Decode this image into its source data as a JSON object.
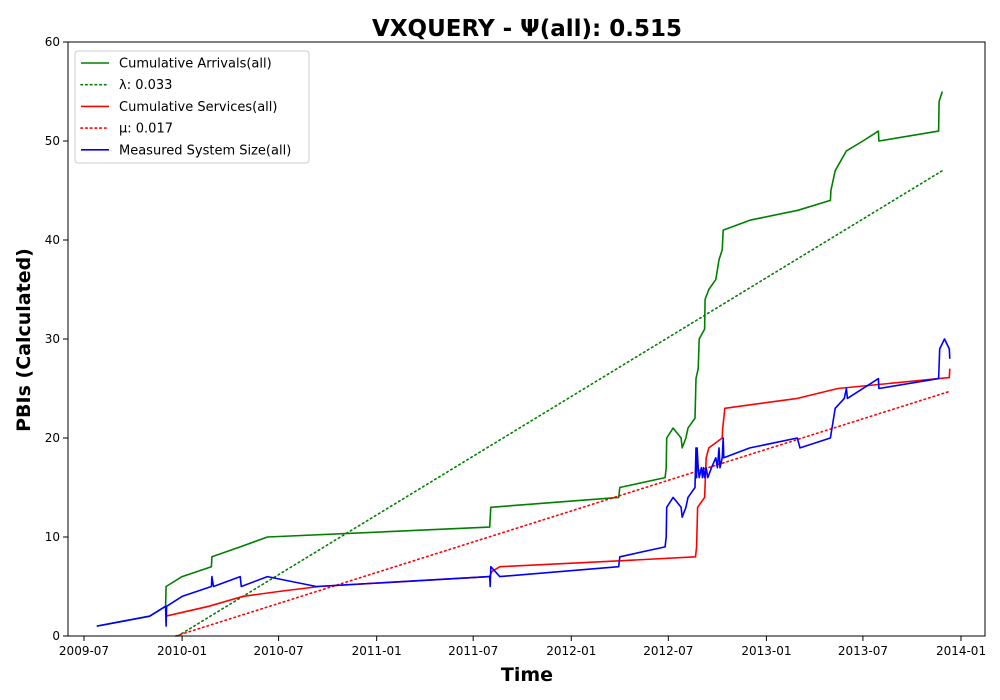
{
  "chart_data": {
    "type": "line",
    "title": "VXQUERY -  Ψ(all): 0.515",
    "xlabel": "Time",
    "ylabel": "PBIs (Calculated)",
    "xlim": [
      "2009-06-01",
      "2014-02-15"
    ],
    "ylim": [
      0,
      60
    ],
    "xticks": [
      "2009-07",
      "2010-01",
      "2010-07",
      "2011-01",
      "2011-07",
      "2012-01",
      "2012-07",
      "2013-01",
      "2013-07",
      "2014-01"
    ],
    "yticks": [
      0,
      10,
      20,
      30,
      40,
      50,
      60
    ],
    "grid": false,
    "legend_position": "top-left",
    "series": [
      {
        "name": "Cumulative Arrivals(all)",
        "style": "solid",
        "color": "#008000",
        "points": [
          [
            "2009-07-25",
            1
          ],
          [
            "2009-11-01",
            2
          ],
          [
            "2009-12-01",
            3
          ],
          [
            "2009-12-02",
            5
          ],
          [
            "2010-01-01",
            6
          ],
          [
            "2010-02-25",
            7
          ],
          [
            "2010-02-26",
            8
          ],
          [
            "2010-04-20",
            9
          ],
          [
            "2010-06-10",
            10
          ],
          [
            "2011-08-01",
            11
          ],
          [
            "2011-08-03",
            13
          ],
          [
            "2012-03-30",
            14
          ],
          [
            "2012-04-01",
            15
          ],
          [
            "2012-06-25",
            16
          ],
          [
            "2012-06-27",
            17
          ],
          [
            "2012-06-28",
            20
          ],
          [
            "2012-07-10",
            21
          ],
          [
            "2012-07-25",
            20
          ],
          [
            "2012-07-27",
            19
          ],
          [
            "2012-08-03",
            20
          ],
          [
            "2012-08-07",
            21
          ],
          [
            "2012-08-20",
            22
          ],
          [
            "2012-08-22",
            26
          ],
          [
            "2012-08-26",
            27
          ],
          [
            "2012-08-28",
            30
          ],
          [
            "2012-09-07",
            31
          ],
          [
            "2012-09-08",
            34
          ],
          [
            "2012-09-15",
            35
          ],
          [
            "2012-09-28",
            36
          ],
          [
            "2012-10-01",
            37
          ],
          [
            "2012-10-04",
            38
          ],
          [
            "2012-10-10",
            39
          ],
          [
            "2012-10-12",
            41
          ],
          [
            "2012-12-01",
            42
          ],
          [
            "2013-03-01",
            43
          ],
          [
            "2013-05-01",
            44
          ],
          [
            "2013-05-02",
            45
          ],
          [
            "2013-05-10",
            47
          ],
          [
            "2013-05-31",
            49
          ],
          [
            "2013-07-01",
            50
          ],
          [
            "2013-07-30",
            51
          ],
          [
            "2013-07-31",
            50
          ],
          [
            "2013-11-20",
            51
          ],
          [
            "2013-11-21",
            54
          ],
          [
            "2013-11-27",
            55
          ]
        ]
      },
      {
        "name": "λ: 0.033",
        "style": "dotted",
        "color": "#008000",
        "points": [
          [
            "2009-12-24",
            0
          ],
          [
            "2013-11-27",
            47
          ]
        ]
      },
      {
        "name": "Cumulative Services(all)",
        "style": "solid",
        "color": "#ff0000",
        "points": [
          [
            "2009-12-01",
            2
          ],
          [
            "2010-02-20",
            3
          ],
          [
            "2010-04-25",
            4
          ],
          [
            "2010-07-01",
            4.5
          ],
          [
            "2010-09-15",
            5
          ],
          [
            "2011-08-01",
            6
          ],
          [
            "2011-08-05",
            6.5
          ],
          [
            "2011-08-20",
            7
          ],
          [
            "2012-04-01",
            7.6
          ],
          [
            "2012-08-21",
            8
          ],
          [
            "2012-08-23",
            9
          ],
          [
            "2012-08-25",
            13
          ],
          [
            "2012-09-07",
            14
          ],
          [
            "2012-09-10",
            18
          ],
          [
            "2012-09-15",
            19
          ],
          [
            "2012-10-10",
            20
          ],
          [
            "2012-10-11",
            21
          ],
          [
            "2012-10-13",
            22
          ],
          [
            "2012-10-15",
            23
          ],
          [
            "2013-02-28",
            24
          ],
          [
            "2013-05-15",
            25
          ],
          [
            "2013-11-20",
            26
          ],
          [
            "2013-12-10",
            26.1
          ],
          [
            "2013-12-11",
            27
          ]
        ]
      },
      {
        "name": "μ: 0.017",
        "style": "dotted",
        "color": "#ff0000",
        "points": [
          [
            "2009-12-20",
            0
          ],
          [
            "2013-12-10",
            24.7
          ]
        ]
      },
      {
        "name": "Measured System Size(all)",
        "style": "solid",
        "color": "#0000ff",
        "points": [
          [
            "2009-07-25",
            1
          ],
          [
            "2009-11-01",
            2
          ],
          [
            "2009-12-01",
            3
          ],
          [
            "2009-12-02",
            1
          ],
          [
            "2009-12-03",
            3
          ],
          [
            "2010-01-01",
            4
          ],
          [
            "2010-02-25",
            5
          ],
          [
            "2010-02-26",
            6
          ],
          [
            "2010-03-01",
            5
          ],
          [
            "2010-04-20",
            6
          ],
          [
            "2010-04-22",
            5
          ],
          [
            "2010-06-10",
            6
          ],
          [
            "2010-09-10",
            5
          ],
          [
            "2011-08-01",
            6
          ],
          [
            "2011-08-02",
            5
          ],
          [
            "2011-08-03",
            7
          ],
          [
            "2011-08-20",
            6
          ],
          [
            "2012-03-30",
            7
          ],
          [
            "2012-04-01",
            8
          ],
          [
            "2012-06-25",
            9
          ],
          [
            "2012-06-27",
            10
          ],
          [
            "2012-06-28",
            13
          ],
          [
            "2012-07-10",
            14
          ],
          [
            "2012-07-25",
            13
          ],
          [
            "2012-07-27",
            12
          ],
          [
            "2012-08-03",
            13
          ],
          [
            "2012-08-07",
            14
          ],
          [
            "2012-08-20",
            15
          ],
          [
            "2012-08-22",
            19
          ],
          [
            "2012-08-23",
            16
          ],
          [
            "2012-08-24",
            19
          ],
          [
            "2012-08-26",
            17
          ],
          [
            "2012-08-28",
            16
          ],
          [
            "2012-09-01",
            17
          ],
          [
            "2012-09-03",
            16
          ],
          [
            "2012-09-05",
            17
          ],
          [
            "2012-09-07",
            16
          ],
          [
            "2012-09-10",
            17
          ],
          [
            "2012-09-13",
            16
          ],
          [
            "2012-09-20",
            17
          ],
          [
            "2012-09-28",
            18
          ],
          [
            "2012-10-01",
            17
          ],
          [
            "2012-10-04",
            19
          ],
          [
            "2012-10-06",
            17
          ],
          [
            "2012-10-10",
            18
          ],
          [
            "2012-10-12",
            20
          ],
          [
            "2012-10-13",
            18
          ],
          [
            "2012-12-01",
            19
          ],
          [
            "2013-02-28",
            20
          ],
          [
            "2013-03-05",
            19
          ],
          [
            "2013-05-01",
            20
          ],
          [
            "2013-05-10",
            23
          ],
          [
            "2013-05-27",
            24
          ],
          [
            "2013-05-31",
            25
          ],
          [
            "2013-06-02",
            24
          ],
          [
            "2013-07-30",
            26
          ],
          [
            "2013-07-31",
            25
          ],
          [
            "2013-11-20",
            26
          ],
          [
            "2013-11-22",
            29
          ],
          [
            "2013-12-01",
            30
          ],
          [
            "2013-12-10",
            29
          ],
          [
            "2013-12-11",
            28
          ]
        ]
      }
    ]
  }
}
